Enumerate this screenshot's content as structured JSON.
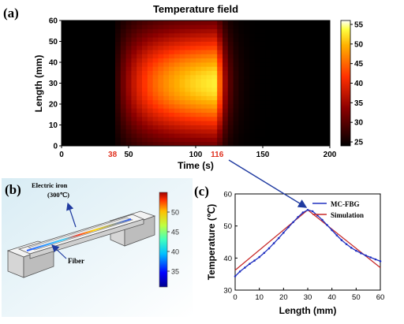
{
  "panel_labels": {
    "a": "(a)",
    "b": "(b)",
    "c": "(c)"
  },
  "chart_data": [
    {
      "type": "heatmap",
      "panel": "(a)",
      "title": "Temperature field",
      "xlabel": "Time (s)",
      "ylabel": "Length (mm)",
      "xlim": [
        0,
        200
      ],
      "ylim": [
        0,
        60
      ],
      "x_ticks": [
        "0",
        "50",
        "100",
        "150",
        "200"
      ],
      "y_ticks": [
        "0",
        "10",
        "20",
        "30",
        "40",
        "50",
        "60"
      ],
      "highlighted_x_ticks": [
        "38",
        "116"
      ],
      "highlight_color": "#e0301e",
      "colorbar": {
        "min": 24,
        "max": 56,
        "ticks": [
          "25",
          "30",
          "35",
          "40",
          "45",
          "50",
          "55"
        ]
      },
      "heated_interval_s": [
        38,
        116
      ],
      "peak": {
        "time_s": 112,
        "length_mm": 30,
        "temperature": 55
      },
      "ambient_temperature": 24
    },
    {
      "type": "line",
      "panel": "(c)",
      "xlabel": "Length (mm)",
      "ylabel": "Temperature (℃)",
      "xlim": [
        0,
        60
      ],
      "ylim": [
        30,
        60
      ],
      "x_ticks": [
        "0",
        "10",
        "20",
        "30",
        "40",
        "50",
        "60"
      ],
      "y_ticks": [
        "30",
        "40",
        "50",
        "60"
      ],
      "legend_position": "top-right",
      "series": [
        {
          "name": "MC-FBG",
          "color": "#2030c0",
          "marker": "dot",
          "x": [
            0,
            2,
            4,
            6,
            8,
            10,
            12,
            14,
            16,
            18,
            20,
            22,
            24,
            26,
            28,
            30,
            32,
            34,
            36,
            38,
            40,
            42,
            44,
            46,
            48,
            50,
            52,
            54,
            56,
            58,
            60
          ],
          "y": [
            34.3,
            35.8,
            37.0,
            38.2,
            39.2,
            40.3,
            41.6,
            43.0,
            44.6,
            46.2,
            47.9,
            49.6,
            51.2,
            52.8,
            54.2,
            55.0,
            54.6,
            53.3,
            51.9,
            50.3,
            48.7,
            47.1,
            45.6,
            44.3,
            43.2,
            42.3,
            41.5,
            40.8,
            40.2,
            39.6,
            39.0
          ]
        },
        {
          "name": "Simulation",
          "color": "#c82a2a",
          "x": [
            0,
            30,
            60
          ],
          "y": [
            36.2,
            55.0,
            37.0
          ]
        }
      ],
      "annotation": "arrow from (a) t = 116 s to the peak of (c)"
    },
    {
      "type": "illustration",
      "panel": "(b)",
      "labels": {
        "iron": "Electric iron",
        "iron_temp": "(300℃)",
        "fiber": "Fiber"
      },
      "colorbar": {
        "min": 31,
        "max": 55,
        "ticks": [
          "50",
          "45",
          "40",
          "35"
        ]
      }
    }
  ]
}
